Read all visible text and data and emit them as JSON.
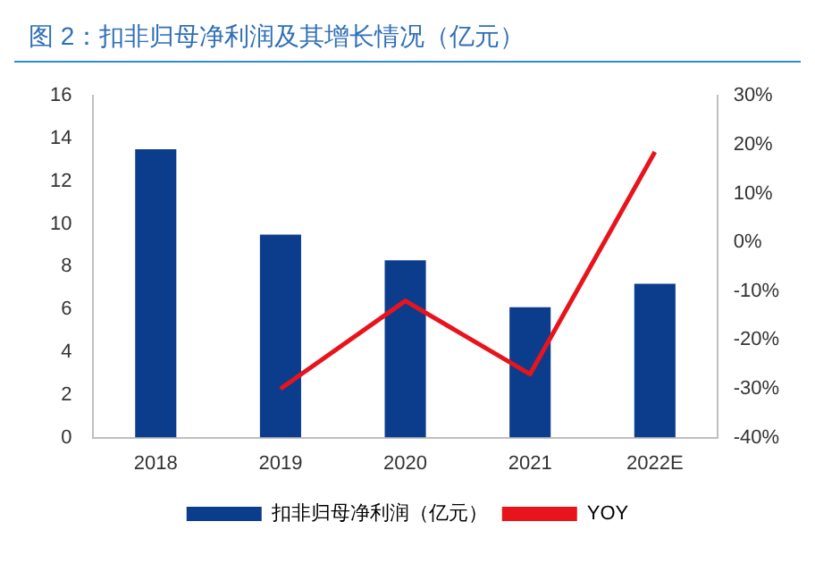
{
  "chart_data": {
    "type": "bar",
    "title": "图 2：扣非归母净利润及其增长情况（亿元）",
    "categories": [
      "2018",
      "2019",
      "2020",
      "2021",
      "2022E"
    ],
    "series": [
      {
        "name": "扣非归母净利润（亿元）",
        "color": "#0b3d8c",
        "values": [
          13.5,
          9.5,
          8.3,
          6.1,
          7.2
        ]
      },
      {
        "name": "YOY",
        "color": "#e8141c",
        "type": "line",
        "axis": "y2",
        "values": [
          null,
          -30,
          -12,
          -27,
          18.5
        ]
      }
    ],
    "ylim": [
      0,
      16
    ],
    "yticks": [
      0,
      2,
      4,
      6,
      8,
      10,
      12,
      14,
      16
    ],
    "y2lim": [
      -40,
      30
    ],
    "y2ticks": [
      {
        "value": -40,
        "label": "-40%"
      },
      {
        "value": -30,
        "label": "-30%"
      },
      {
        "value": -20,
        "label": "-20%"
      },
      {
        "value": -10,
        "label": "-10%"
      },
      {
        "value": 0,
        "label": "0%"
      },
      {
        "value": 10,
        "label": "10%"
      },
      {
        "value": 20,
        "label": "20%"
      },
      {
        "value": 30,
        "label": "30%"
      }
    ],
    "grid": false,
    "legend": "bottom",
    "marker": "none"
  }
}
